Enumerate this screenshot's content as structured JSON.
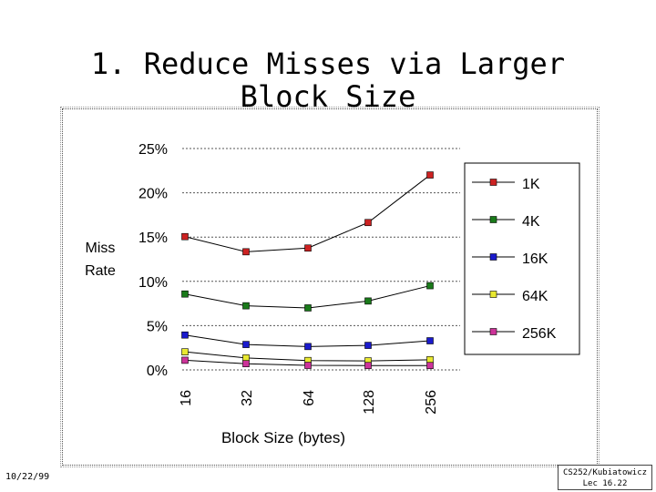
{
  "slide": {
    "title_line1": "1. Reduce Misses via Larger",
    "title_line2": "Block Size",
    "footer_date": "10/22/99",
    "footer_course": "CS252/Kubiatowicz",
    "footer_lecture": "Lec 16.22"
  },
  "colors": {
    "series_1K": "#cc2222",
    "series_4K": "#1a7a1a",
    "series_16K": "#1a1acc",
    "series_64K": "#e8e830",
    "series_256K": "#cc3399",
    "line": "#000000",
    "grid": "#555555"
  },
  "chart_data": {
    "type": "line",
    "title": "",
    "xlabel": "Block Size (bytes)",
    "ylabel": "Miss Rate",
    "categories": [
      "16",
      "32",
      "64",
      "128",
      "256"
    ],
    "yticks": [
      "0%",
      "5%",
      "10%",
      "15%",
      "20%",
      "25%"
    ],
    "ylim": [
      0,
      25
    ],
    "grid": "horizontal dotted",
    "legend_position": "right",
    "series": [
      {
        "name": "1K",
        "values": [
          15.05,
          13.34,
          13.76,
          16.64,
          22.01
        ]
      },
      {
        "name": "4K",
        "values": [
          8.57,
          7.24,
          7.0,
          7.78,
          9.51
        ]
      },
      {
        "name": "16K",
        "values": [
          3.94,
          2.87,
          2.64,
          2.77,
          3.29
        ]
      },
      {
        "name": "64K",
        "values": [
          2.04,
          1.35,
          1.06,
          1.02,
          1.15
        ]
      },
      {
        "name": "256K",
        "values": [
          1.09,
          0.7,
          0.51,
          0.49,
          0.49
        ]
      }
    ]
  }
}
